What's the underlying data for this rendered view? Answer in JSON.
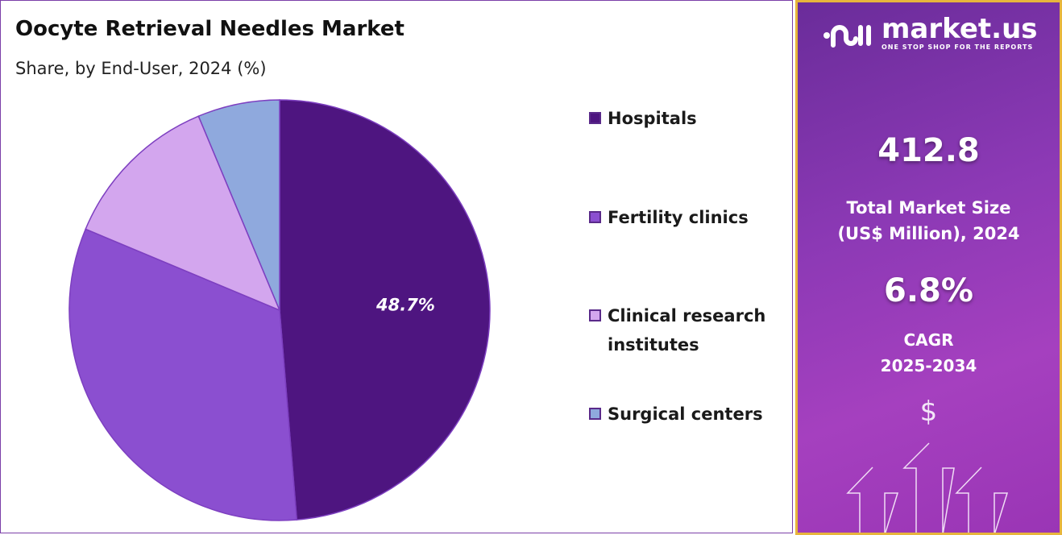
{
  "chart_data": {
    "type": "pie",
    "title": "Oocyte Retrieval Needles Market",
    "subtitle": "Share, by End-User, 2024 (%)",
    "categories": [
      "Hospitals",
      "Fertility clinics",
      "Clinical research institutes",
      "Surgical centers"
    ],
    "values": [
      48.7,
      32.6,
      12.4,
      6.3
    ],
    "colors": [
      "#4e1580",
      "#8b4fd0",
      "#d3a6ee",
      "#8fa9dd"
    ],
    "data_labels": [
      "48.7%",
      "",
      "",
      ""
    ],
    "legend_position": "right",
    "legend": [
      {
        "line1": "Hospitals",
        "line2": ""
      },
      {
        "line1": "Fertility clinics",
        "line2": ""
      },
      {
        "line1": "Clinical research",
        "line2": "institutes"
      },
      {
        "line1": "Surgical centers",
        "line2": ""
      }
    ]
  },
  "panel": {
    "logo_name": "market.us",
    "logo_tagline": "ONE STOP SHOP FOR THE REPORTS",
    "market_size": "412.8",
    "market_size_label1": "Total Market Size",
    "market_size_label2": "(US$ Million), 2024",
    "cagr": "6.8%",
    "cagr_label1": "CAGR",
    "cagr_label2": "2025-2034",
    "dollar": "$",
    "border_color": "#e7b53c"
  }
}
